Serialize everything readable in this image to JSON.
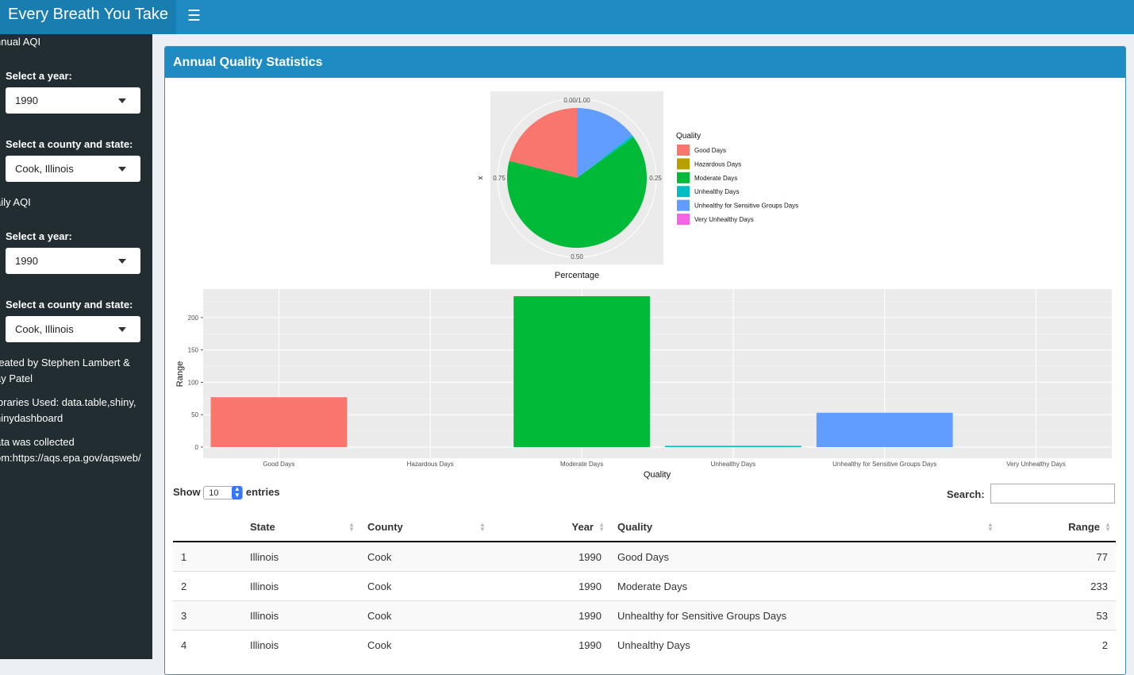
{
  "app": {
    "title": "Every Breath You Take"
  },
  "sidebar": {
    "annual_heading": "nnual AQI",
    "annual_year_label": "Select a year:",
    "annual_year_value": "1990",
    "annual_county_label": "Select a county and state:",
    "annual_county_value": "Cook, Illinois",
    "daily_heading": "aily AQI",
    "daily_year_label": "Select a year:",
    "daily_year_value": "1990",
    "daily_county_label": "Select a county and state:",
    "daily_county_value": "Cook, Illinois",
    "credits": "reated by Stephen Lambert &\nay Patel",
    "libraries": "ibraries Used: data.table,shiny,\nhinydashboard",
    "source": "ata was collected\nom:https://aqs.epa.gov/aqsweb/"
  },
  "box": {
    "title": "Annual Quality Statistics"
  },
  "pie_chart": {
    "type": "pie",
    "x_title": "Percentage",
    "y_title": "x",
    "ticks": [
      "0.00/1.00",
      "0.25",
      "0.50",
      "0.75"
    ],
    "legend_title": "Quality",
    "categories": [
      "Good Days",
      "Hazardous Days",
      "Moderate Days",
      "Unhealthy Days",
      "Unhealthy for Sensitive Groups Days",
      "Very Unhealthy Days"
    ],
    "values": [
      77,
      0,
      233,
      2,
      53,
      0
    ],
    "colors": [
      "#F8766D",
      "#B79F00",
      "#00BA38",
      "#00BFC4",
      "#619CFF",
      "#F564E3"
    ],
    "legend_position": "right"
  },
  "chart_data": {
    "type": "bar",
    "categories": [
      "Good Days",
      "Hazardous Days",
      "Moderate Days",
      "Unhealthy Days",
      "Unhealthy for Sensitive Groups Days",
      "Very Unhealthy Days"
    ],
    "values": [
      77,
      0,
      233,
      2,
      53,
      0
    ],
    "colors": [
      "#F8766D",
      "#B79F00",
      "#00BA38",
      "#00BFC4",
      "#619CFF",
      "#F564E3"
    ],
    "xlabel": "Quality",
    "ylabel": "Range",
    "yticks": [
      0,
      50,
      100,
      150,
      200
    ],
    "ylim": [
      0,
      245
    ],
    "grid": true
  },
  "table": {
    "show_label": "Show",
    "entries_label": "entries",
    "length_value": "10",
    "search_label": "Search:",
    "columns": [
      "",
      "State",
      "County",
      "Year",
      "Quality",
      "Range"
    ],
    "rows": [
      [
        "1",
        "Illinois",
        "Cook",
        "1990",
        "Good Days",
        "77"
      ],
      [
        "2",
        "Illinois",
        "Cook",
        "1990",
        "Moderate Days",
        "233"
      ],
      [
        "3",
        "Illinois",
        "Cook",
        "1990",
        "Unhealthy for Sensitive Groups Days",
        "53"
      ],
      [
        "4",
        "Illinois",
        "Cook",
        "1990",
        "Unhealthy Days",
        "2"
      ]
    ]
  }
}
